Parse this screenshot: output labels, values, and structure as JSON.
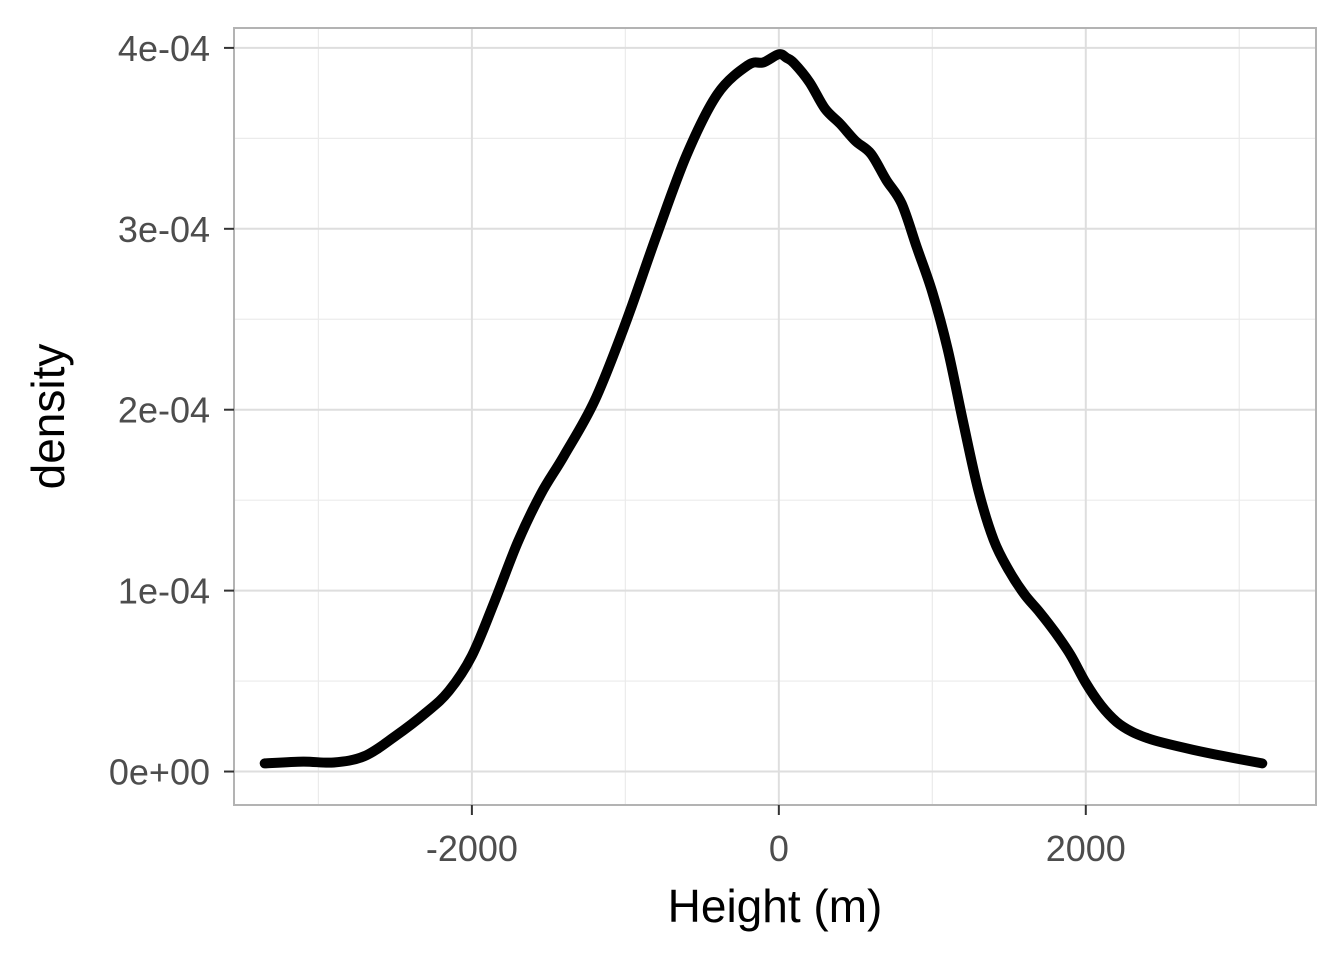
{
  "chart_data": {
    "type": "line",
    "title": "",
    "xlabel": "Height (m)",
    "ylabel": "density",
    "xlim": [
      -3550,
      3500
    ],
    "ylim": [
      -1.85e-05,
      0.000411
    ],
    "x_ticks": [
      {
        "value": -2000,
        "label": "-2000"
      },
      {
        "value": 0,
        "label": "0"
      },
      {
        "value": 2000,
        "label": "2000"
      }
    ],
    "x_minor_ticks": [
      -3000,
      -1000,
      1000,
      3000
    ],
    "y_ticks": [
      {
        "value": 0,
        "label": "0e+00"
      },
      {
        "value": 0.0001,
        "label": "1e-04"
      },
      {
        "value": 0.0002,
        "label": "2e-04"
      },
      {
        "value": 0.0003,
        "label": "3e-04"
      },
      {
        "value": 0.0004,
        "label": "4e-04"
      }
    ],
    "y_minor_ticks": [
      5e-05,
      0.00015,
      0.00025,
      0.00035
    ],
    "grid": true,
    "legend": "none",
    "series": [
      {
        "color": "#000000",
        "x": [
          -3350,
          -3100,
          -2900,
          -2700,
          -2500,
          -2300,
          -2150,
          -2000,
          -1850,
          -1700,
          -1550,
          -1400,
          -1200,
          -1000,
          -800,
          -600,
          -400,
          -200,
          -100,
          0,
          50,
          100,
          200,
          300,
          400,
          500,
          600,
          700,
          800,
          900,
          1000,
          1100,
          1200,
          1300,
          1400,
          1500,
          1600,
          1700,
          1800,
          1900,
          2000,
          2100,
          2200,
          2300,
          2400,
          2500,
          2700,
          2900,
          3150
        ],
        "y": [
          4.5e-06,
          5.5e-06,
          5e-06,
          8.5e-06,
          1.95e-05,
          3.25e-05,
          4.45e-05,
          6.4e-05,
          9.45e-05,
          0.000127,
          0.0001535,
          0.0001745,
          0.000205,
          0.0002475,
          0.0002955,
          0.000341,
          0.0003745,
          0.0003905,
          0.000392,
          0.0003965,
          0.0003945,
          0.0003915,
          0.000381,
          0.0003665,
          0.000358,
          0.0003485,
          0.0003415,
          0.000327,
          0.000314,
          0.0002895,
          0.000265,
          0.0002335,
          0.0001935,
          0.0001555,
          0.000128,
          0.000111,
          9.8e-05,
          8.8e-05,
          7.7e-05,
          6.45e-05,
          4.9e-05,
          3.65e-05,
          2.75e-05,
          2.2e-05,
          1.85e-05,
          1.6e-05,
          1.2e-05,
          8.5e-06,
          4.5e-06
        ]
      }
    ]
  }
}
